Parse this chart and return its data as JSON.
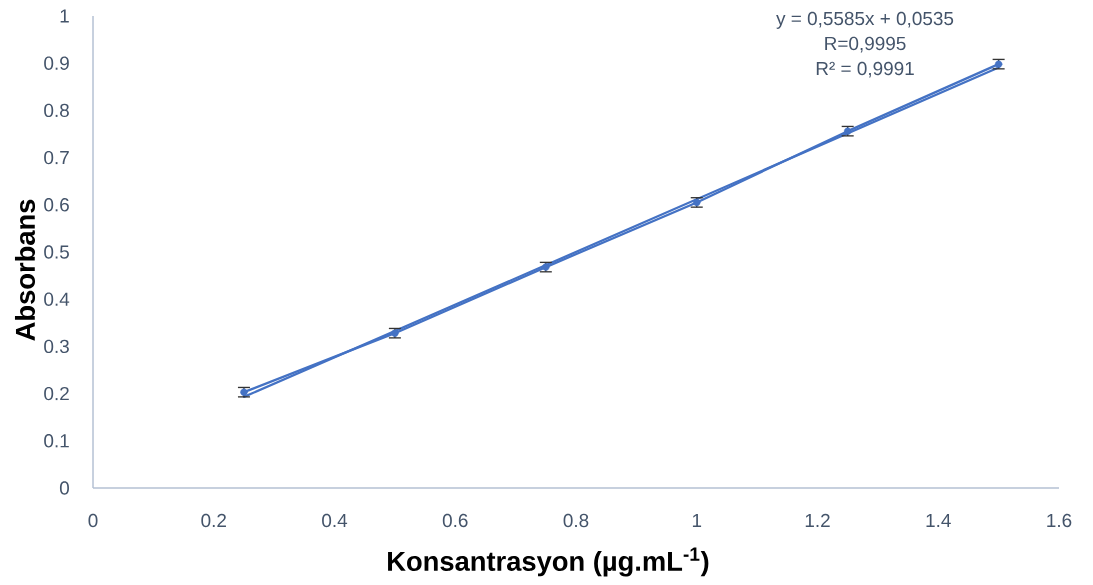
{
  "chart_data": {
    "type": "line",
    "xlabel": "Konsantrasyon (µg.mL$^{-1}$)",
    "ylabel": "Absorbans",
    "x": [
      0.25,
      0.5,
      0.75,
      1,
      1.25,
      1.5
    ],
    "series": [
      {
        "type": "line",
        "color": "#4472c4",
        "x": [
          0.25,
          1.5
        ],
        "values": [
          0.193,
          0.891
        ],
        "marker": "none"
      },
      {
        "color": "#4472c4",
        "values": [
          0.203,
          0.328,
          0.468,
          0.605,
          0.756,
          0.898
        ],
        "errors": [
          0.01,
          0.01,
          0.01,
          0.01,
          0.01,
          0.01
        ]
      }
    ],
    "marker": "circle",
    "line_style": "solid",
    "xlim": [
      0,
      1.6
    ],
    "xticks": [
      0,
      0.2,
      0.4,
      0.6,
      0.8,
      1,
      1.2,
      1.4,
      1.6
    ],
    "ylim": [
      0,
      1
    ],
    "yticks": [
      0,
      0.1,
      0.2,
      0.3,
      0.4,
      0.5,
      0.6,
      0.7,
      0.8,
      0.9,
      1
    ],
    "annotations": [
      "y = 0,5585x + 0,0535",
      "R=0,9995",
      "R² = 0,9991"
    ]
  }
}
